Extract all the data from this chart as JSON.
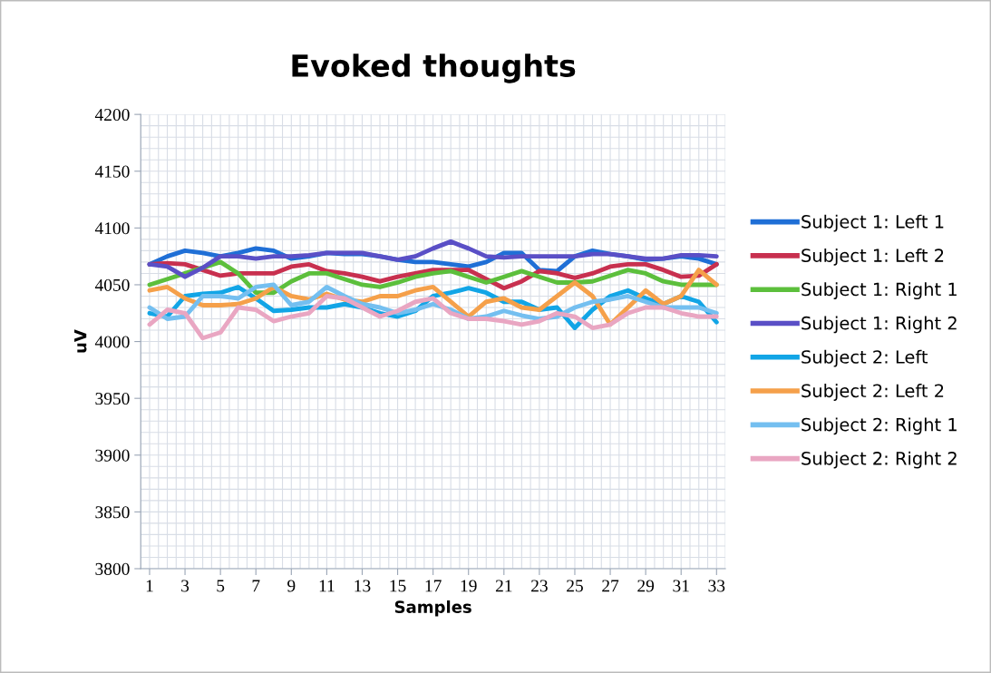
{
  "chart_data": {
    "type": "line",
    "title": "Evoked thoughts",
    "xlabel": "Samples",
    "ylabel": "uV",
    "x": [
      1,
      2,
      3,
      4,
      5,
      6,
      7,
      8,
      9,
      10,
      11,
      12,
      13,
      14,
      15,
      16,
      17,
      18,
      19,
      20,
      21,
      22,
      23,
      24,
      25,
      26,
      27,
      28,
      29,
      30,
      31,
      32,
      33
    ],
    "xlim": [
      0.5,
      33.5
    ],
    "xticks": [
      1,
      3,
      5,
      7,
      9,
      11,
      13,
      15,
      17,
      19,
      21,
      23,
      25,
      27,
      29,
      31,
      33
    ],
    "ylim": [
      3800,
      4200
    ],
    "yticks": [
      3800,
      3850,
      3900,
      3950,
      4000,
      4050,
      4100,
      4150,
      4200
    ],
    "grid": true,
    "legend": "right",
    "marker": "none",
    "line_style": "solid",
    "series": [
      {
        "name": "Subject 1: Left 1",
        "color": "#1f6fd6",
        "values": [
          4068,
          4075,
          4080,
          4078,
          4075,
          4078,
          4082,
          4080,
          4073,
          4075,
          4078,
          4077,
          4077,
          4075,
          4072,
          4070,
          4070,
          4068,
          4066,
          4070,
          4078,
          4078,
          4063,
          4062,
          4075,
          4080,
          4077,
          4075,
          4072,
          4073,
          4075,
          4073,
          4068
        ]
      },
      {
        "name": "Subject 1: Left 2",
        "color": "#c8304f",
        "values": [
          4068,
          4069,
          4068,
          4063,
          4058,
          4060,
          4060,
          4060,
          4066,
          4068,
          4062,
          4060,
          4057,
          4053,
          4057,
          4060,
          4063,
          4063,
          4063,
          4055,
          4047,
          4053,
          4062,
          4060,
          4056,
          4060,
          4066,
          4068,
          4068,
          4063,
          4057,
          4058,
          4068
        ]
      },
      {
        "name": "Subject 1: Right 1",
        "color": "#5cbf3c",
        "values": [
          4050,
          4055,
          4060,
          4065,
          4070,
          4060,
          4043,
          4043,
          4053,
          4060,
          4060,
          4055,
          4050,
          4048,
          4052,
          4057,
          4060,
          4062,
          4057,
          4052,
          4057,
          4062,
          4057,
          4052,
          4052,
          4053,
          4058,
          4063,
          4060,
          4053,
          4050,
          4050,
          4050
        ]
      },
      {
        "name": "Subject 1: Right 2",
        "color": "#5a4fc6",
        "values": [
          4068,
          4066,
          4057,
          4065,
          4075,
          4075,
          4073,
          4075,
          4075,
          4076,
          4078,
          4078,
          4078,
          4075,
          4072,
          4075,
          4082,
          4088,
          4082,
          4075,
          4074,
          4075,
          4075,
          4075,
          4075,
          4077,
          4077,
          4075,
          4073,
          4073,
          4076,
          4076,
          4075
        ]
      },
      {
        "name": "Subject 2: Left",
        "color": "#12a5e6",
        "values": [
          4025,
          4022,
          4040,
          4042,
          4043,
          4048,
          4038,
          4027,
          4028,
          4030,
          4030,
          4033,
          4030,
          4025,
          4022,
          4027,
          4040,
          4043,
          4047,
          4043,
          4035,
          4035,
          4028,
          4030,
          4012,
          4028,
          4040,
          4045,
          4038,
          4033,
          4040,
          4035,
          4017
        ]
      },
      {
        "name": "Subject 2: Left 2",
        "color": "#f5a04a",
        "values": [
          4045,
          4048,
          4038,
          4032,
          4032,
          4033,
          4038,
          4048,
          4040,
          4037,
          4042,
          4037,
          4035,
          4040,
          4040,
          4045,
          4048,
          4035,
          4022,
          4035,
          4038,
          4030,
          4028,
          4040,
          4052,
          4040,
          4015,
          4030,
          4045,
          4033,
          4040,
          4063,
          4050
        ]
      },
      {
        "name": "Subject 2: Right 1",
        "color": "#74bff0",
        "values": [
          4030,
          4020,
          4022,
          4040,
          4040,
          4038,
          4048,
          4050,
          4032,
          4035,
          4048,
          4040,
          4033,
          4030,
          4025,
          4028,
          4033,
          4028,
          4020,
          4022,
          4027,
          4023,
          4020,
          4022,
          4030,
          4035,
          4037,
          4040,
          4035,
          4030,
          4030,
          4030,
          4025
        ]
      },
      {
        "name": "Subject 2: Right 2",
        "color": "#e9a6c2",
        "values": [
          4015,
          4028,
          4025,
          4003,
          4008,
          4030,
          4028,
          4018,
          4022,
          4025,
          4040,
          4038,
          4030,
          4022,
          4027,
          4035,
          4038,
          4025,
          4020,
          4020,
          4018,
          4015,
          4018,
          4025,
          4022,
          4012,
          4015,
          4025,
          4030,
          4030,
          4025,
          4022,
          4022
        ]
      }
    ]
  }
}
